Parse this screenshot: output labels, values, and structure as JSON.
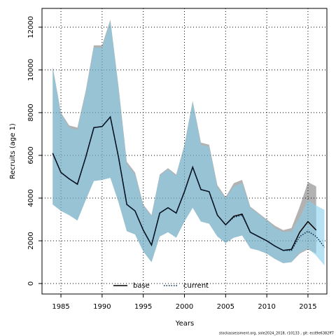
{
  "chart_data": {
    "type": "line",
    "xlabel": "Years",
    "ylabel": "Recruits (age 1)",
    "x": [
      1984,
      1985,
      1986,
      1987,
      1988,
      1989,
      1990,
      1991,
      1992,
      1993,
      1994,
      1995,
      1996,
      1997,
      1998,
      1999,
      2000,
      2001,
      2002,
      2003,
      2004,
      2005,
      2006,
      2007,
      2008,
      2009,
      2010,
      2011,
      2012,
      2013,
      2014,
      2015,
      2016,
      2017
    ],
    "series": [
      {
        "name": "base",
        "color": "#000000",
        "band_color": "rgba(0,0,0,0.3)",
        "dash": "solid",
        "values": [
          6100,
          5200,
          4900,
          4650,
          5900,
          7300,
          7350,
          7800,
          5900,
          3700,
          3400,
          2500,
          1800,
          3300,
          3550,
          3300,
          4300,
          5450,
          4400,
          4300,
          3200,
          2750,
          3150,
          3250,
          2400,
          2200,
          2000,
          1750,
          1550,
          1600,
          2400,
          2900,
          2500,
          null
        ],
        "upper": [
          10150,
          8000,
          7400,
          7300,
          9000,
          11150,
          11150,
          12350,
          9200,
          5700,
          5200,
          3700,
          3200,
          5100,
          5400,
          5100,
          6500,
          8550,
          6600,
          6500,
          4600,
          4050,
          4700,
          4850,
          3600,
          3300,
          3000,
          2700,
          2500,
          2600,
          3600,
          4750,
          4550,
          null
        ],
        "lower": [
          3700,
          3400,
          3200,
          2950,
          3900,
          4800,
          4850,
          4950,
          3800,
          2450,
          2300,
          1500,
          1000,
          2200,
          2400,
          2150,
          2900,
          3550,
          2900,
          2800,
          2200,
          1900,
          2150,
          2250,
          1650,
          1550,
          1400,
          1150,
          950,
          1000,
          1400,
          1600,
          1400,
          null
        ]
      },
      {
        "name": "current",
        "color": "#00264d",
        "band_color": "rgba(135,206,235,0.6)",
        "dash": "dotted",
        "values": [
          6100,
          5200,
          4900,
          4650,
          5900,
          7300,
          7350,
          7800,
          5900,
          3700,
          3400,
          2500,
          1800,
          3300,
          3550,
          3300,
          4300,
          5450,
          4400,
          4300,
          3200,
          2750,
          3100,
          3200,
          2400,
          2200,
          2000,
          1750,
          1550,
          1550,
          2200,
          2450,
          2200,
          1700
        ],
        "upper": [
          10100,
          7950,
          7300,
          7200,
          8900,
          11050,
          11050,
          12300,
          9100,
          5600,
          5100,
          3650,
          3150,
          5050,
          5350,
          5050,
          6450,
          8500,
          6500,
          6400,
          4500,
          4000,
          4550,
          4700,
          3550,
          3250,
          2950,
          2600,
          2400,
          2450,
          3100,
          3900,
          3650,
          3450
        ],
        "lower": [
          3700,
          3400,
          3200,
          2950,
          3900,
          4800,
          4850,
          4950,
          3800,
          2450,
          2300,
          1500,
          1000,
          2200,
          2400,
          2150,
          2900,
          3550,
          2900,
          2800,
          2200,
          1900,
          2150,
          2250,
          1650,
          1550,
          1400,
          1150,
          950,
          1000,
          1450,
          1650,
          1300,
          850
        ]
      }
    ],
    "xlim": [
      1982.7,
      2017.3
    ],
    "xticks": [
      1985,
      1990,
      1995,
      2000,
      2005,
      2010,
      2015
    ],
    "ylim": [
      -490,
      12880
    ],
    "yticks": [
      0,
      2000,
      4000,
      6000,
      8000,
      10000,
      12000
    ],
    "grid": true,
    "legend": "bottom",
    "footer": "stockassessment.org, sole2024_2018, r10133 , git: ecd9e6382ff7"
  }
}
